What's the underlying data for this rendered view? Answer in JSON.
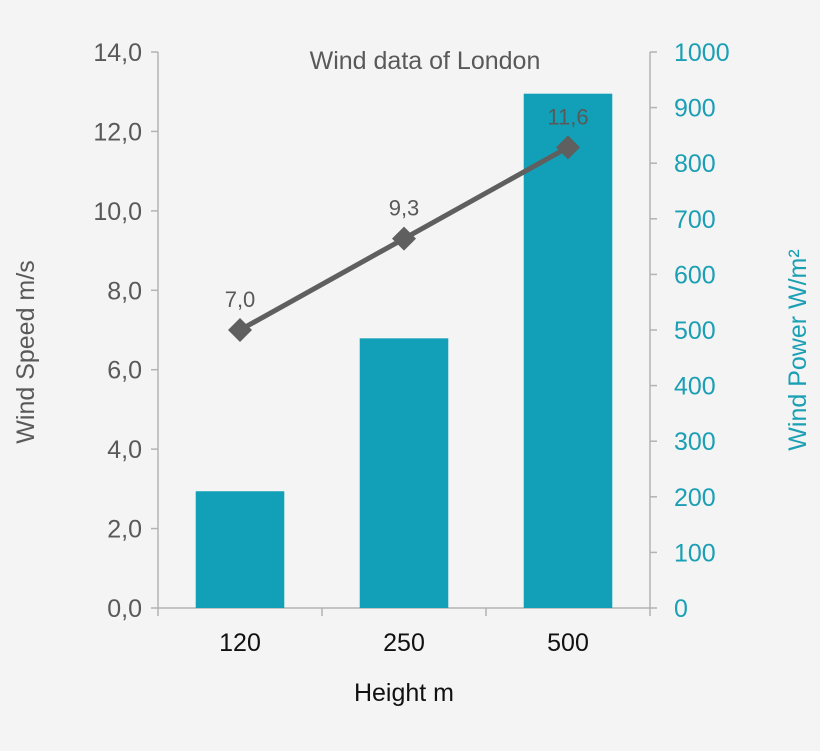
{
  "chart_data": {
    "type": "bar+line",
    "title": "Wind data of London",
    "xlabel": "Height m",
    "categories": [
      "120",
      "250",
      "500"
    ],
    "bar_series": {
      "name": "Wind Power W/m²",
      "axis": "right",
      "values": [
        210,
        485,
        925
      ],
      "color": "#12a0b8"
    },
    "line_series": {
      "name": "Wind Speed m/s",
      "axis": "left",
      "values": [
        7.0,
        9.3,
        11.6
      ],
      "labels": [
        "7,0",
        "9,3",
        "11,6"
      ],
      "color": "#5f5f5f",
      "marker": "diamond"
    },
    "y_left": {
      "label": "Wind Speed m/s",
      "ylim": [
        0,
        14
      ],
      "ticks": [
        "0,0",
        "2,0",
        "4,0",
        "6,0",
        "8,0",
        "10,0",
        "12,0",
        "14,0"
      ]
    },
    "y_right": {
      "label": "Wind Power W/m²",
      "ylim": [
        0,
        1000
      ],
      "ticks": [
        "0",
        "100",
        "200",
        "300",
        "400",
        "500",
        "600",
        "700",
        "800",
        "900",
        "1000"
      ],
      "color": "#1a9fb5"
    },
    "grid": false,
    "legend": "none"
  }
}
